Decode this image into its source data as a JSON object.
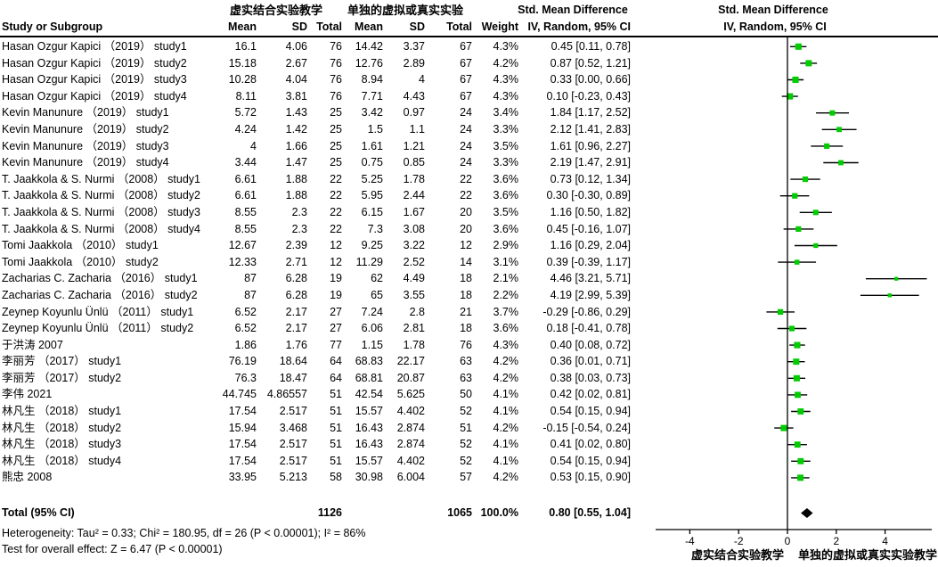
{
  "header": {
    "study_col": "Study or Subgroup",
    "group1": "虚实结合实验教学",
    "group2": "单独的虚拟或真实实验",
    "smd_text_col": "Std. Mean Difference",
    "smd_plot_col": "Std. Mean Difference",
    "mean": "Mean",
    "sd": "SD",
    "total": "Total",
    "weight": "Weight",
    "method_text_col": "IV, Random, 95% CI",
    "method_plot_col": "IV, Random, 95% CI"
  },
  "footer": {
    "heterogeneity": "Heterogeneity: Tau² = 0.33; Chi² = 180.95, df = 26 (P < 0.00001); I² = 86%",
    "overall_effect": "Test for overall effect: Z = 6.47 (P < 0.00001)"
  },
  "colors": {
    "marker_green": "#00cc00",
    "line_black": "#000000"
  },
  "chart_data": {
    "type": "forest",
    "effect_measure": "Std. Mean Difference",
    "model": "IV, Random, 95% CI",
    "axis_ticks": [
      -4,
      -2,
      0,
      2,
      4
    ],
    "axis_label_left": "虚实结合实验教学",
    "axis_label_right": "单独的虚拟或真实实验教学",
    "studies": [
      {
        "name": "Hasan Ozgur Kapici （2019） study1",
        "mean1": "16.1",
        "sd1": "4.06",
        "n1": "76",
        "mean2": "14.42",
        "sd2": "3.37",
        "n2": "67",
        "weight": "4.3%",
        "weight_pct": 4.3,
        "ci_text": "0.45 [0.11, 0.78]",
        "smd": 0.45,
        "lo": 0.11,
        "hi": 0.78
      },
      {
        "name": "Hasan Ozgur Kapici （2019） study2",
        "mean1": "15.18",
        "sd1": "2.67",
        "n1": "76",
        "mean2": "12.76",
        "sd2": "2.89",
        "n2": "67",
        "weight": "4.2%",
        "weight_pct": 4.2,
        "ci_text": "0.87 [0.52, 1.21]",
        "smd": 0.87,
        "lo": 0.52,
        "hi": 1.21
      },
      {
        "name": "Hasan Ozgur Kapici （2019） study3",
        "mean1": "10.28",
        "sd1": "4.04",
        "n1": "76",
        "mean2": "8.94",
        "sd2": "4",
        "n2": "67",
        "weight": "4.3%",
        "weight_pct": 4.3,
        "ci_text": "0.33 [0.00, 0.66]",
        "smd": 0.33,
        "lo": 0.0,
        "hi": 0.66
      },
      {
        "name": "Hasan Ozgur Kapici （2019） study4",
        "mean1": "8.11",
        "sd1": "3.81",
        "n1": "76",
        "mean2": "7.71",
        "sd2": "4.43",
        "n2": "67",
        "weight": "4.3%",
        "weight_pct": 4.3,
        "ci_text": "0.10 [-0.23, 0.43]",
        "smd": 0.1,
        "lo": -0.23,
        "hi": 0.43
      },
      {
        "name": "Kevin Manunure （2019） study1",
        "mean1": "5.72",
        "sd1": "1.43",
        "n1": "25",
        "mean2": "3.42",
        "sd2": "0.97",
        "n2": "24",
        "weight": "3.4%",
        "weight_pct": 3.4,
        "ci_text": "1.84 [1.17, 2.52]",
        "smd": 1.84,
        "lo": 1.17,
        "hi": 2.52
      },
      {
        "name": "Kevin Manunure （2019） study2",
        "mean1": "4.24",
        "sd1": "1.42",
        "n1": "25",
        "mean2": "1.5",
        "sd2": "1.1",
        "n2": "24",
        "weight": "3.3%",
        "weight_pct": 3.3,
        "ci_text": "2.12 [1.41, 2.83]",
        "smd": 2.12,
        "lo": 1.41,
        "hi": 2.83
      },
      {
        "name": "Kevin Manunure （2019） study3",
        "mean1": "4",
        "sd1": "1.66",
        "n1": "25",
        "mean2": "1.61",
        "sd2": "1.21",
        "n2": "24",
        "weight": "3.5%",
        "weight_pct": 3.5,
        "ci_text": "1.61 [0.96, 2.27]",
        "smd": 1.61,
        "lo": 0.96,
        "hi": 2.27
      },
      {
        "name": "Kevin Manunure （2019） study4",
        "mean1": "3.44",
        "sd1": "1.47",
        "n1": "25",
        "mean2": "0.75",
        "sd2": "0.85",
        "n2": "24",
        "weight": "3.3%",
        "weight_pct": 3.3,
        "ci_text": "2.19 [1.47, 2.91]",
        "smd": 2.19,
        "lo": 1.47,
        "hi": 2.91
      },
      {
        "name": "T. Jaakkola & S. Nurmi （2008） study1",
        "mean1": "6.61",
        "sd1": "1.88",
        "n1": "22",
        "mean2": "5.25",
        "sd2": "1.78",
        "n2": "22",
        "weight": "3.6%",
        "weight_pct": 3.6,
        "ci_text": "0.73 [0.12, 1.34]",
        "smd": 0.73,
        "lo": 0.12,
        "hi": 1.34
      },
      {
        "name": "T. Jaakkola & S. Nurmi （2008） study2",
        "mean1": "6.61",
        "sd1": "1.88",
        "n1": "22",
        "mean2": "5.95",
        "sd2": "2.44",
        "n2": "22",
        "weight": "3.6%",
        "weight_pct": 3.6,
        "ci_text": "0.30 [-0.30, 0.89]",
        "smd": 0.3,
        "lo": -0.3,
        "hi": 0.89
      },
      {
        "name": "T. Jaakkola & S. Nurmi （2008） study3",
        "mean1": "8.55",
        "sd1": "2.3",
        "n1": "22",
        "mean2": "6.15",
        "sd2": "1.67",
        "n2": "20",
        "weight": "3.5%",
        "weight_pct": 3.5,
        "ci_text": "1.16 [0.50, 1.82]",
        "smd": 1.16,
        "lo": 0.5,
        "hi": 1.82
      },
      {
        "name": "T. Jaakkola & S. Nurmi （2008） study4",
        "mean1": "8.55",
        "sd1": "2.3",
        "n1": "22",
        "mean2": "7.3",
        "sd2": "3.08",
        "n2": "20",
        "weight": "3.6%",
        "weight_pct": 3.6,
        "ci_text": "0.45 [-0.16, 1.07]",
        "smd": 0.45,
        "lo": -0.16,
        "hi": 1.07
      },
      {
        "name": "Tomi Jaakkola （2010） study1",
        "mean1": "12.67",
        "sd1": "2.39",
        "n1": "12",
        "mean2": "9.25",
        "sd2": "3.22",
        "n2": "12",
        "weight": "2.9%",
        "weight_pct": 2.9,
        "ci_text": "1.16 [0.29, 2.04]",
        "smd": 1.16,
        "lo": 0.29,
        "hi": 2.04
      },
      {
        "name": "Tomi Jaakkola （2010） study2",
        "mean1": "12.33",
        "sd1": "2.71",
        "n1": "12",
        "mean2": "11.29",
        "sd2": "2.52",
        "n2": "14",
        "weight": "3.1%",
        "weight_pct": 3.1,
        "ci_text": "0.39 [-0.39, 1.17]",
        "smd": 0.39,
        "lo": -0.39,
        "hi": 1.17
      },
      {
        "name": "Zacharias C. Zacharia （2016） study1",
        "mean1": "87",
        "sd1": "6.28",
        "n1": "19",
        "mean2": "62",
        "sd2": "4.49",
        "n2": "18",
        "weight": "2.1%",
        "weight_pct": 2.1,
        "ci_text": "4.46 [3.21, 5.71]",
        "smd": 4.46,
        "lo": 3.21,
        "hi": 5.71
      },
      {
        "name": "Zacharias C. Zacharia （2016） study2",
        "mean1": "87",
        "sd1": "6.28",
        "n1": "19",
        "mean2": "65",
        "sd2": "3.55",
        "n2": "18",
        "weight": "2.2%",
        "weight_pct": 2.2,
        "ci_text": "4.19 [2.99, 5.39]",
        "smd": 4.19,
        "lo": 2.99,
        "hi": 5.39
      },
      {
        "name": "Zeynep Koyunlu Ünlü （2011） study1",
        "mean1": "6.52",
        "sd1": "2.17",
        "n1": "27",
        "mean2": "7.24",
        "sd2": "2.8",
        "n2": "21",
        "weight": "3.7%",
        "weight_pct": 3.7,
        "ci_text": "-0.29 [-0.86, 0.29]",
        "smd": -0.29,
        "lo": -0.86,
        "hi": 0.29
      },
      {
        "name": "Zeynep Koyunlu Ünlü （2011） study2",
        "mean1": "6.52",
        "sd1": "2.17",
        "n1": "27",
        "mean2": "6.06",
        "sd2": "2.81",
        "n2": "18",
        "weight": "3.6%",
        "weight_pct": 3.6,
        "ci_text": "0.18 [-0.41, 0.78]",
        "smd": 0.18,
        "lo": -0.41,
        "hi": 0.78
      },
      {
        "name": "于洪涛 2007",
        "mean1": "1.86",
        "sd1": "1.76",
        "n1": "77",
        "mean2": "1.15",
        "sd2": "1.78",
        "n2": "76",
        "weight": "4.3%",
        "weight_pct": 4.3,
        "ci_text": "0.40 [0.08, 0.72]",
        "smd": 0.4,
        "lo": 0.08,
        "hi": 0.72
      },
      {
        "name": "李丽芳 （2017） study1",
        "mean1": "76.19",
        "sd1": "18.64",
        "n1": "64",
        "mean2": "68.83",
        "sd2": "22.17",
        "n2": "63",
        "weight": "4.2%",
        "weight_pct": 4.2,
        "ci_text": "0.36 [0.01, 0.71]",
        "smd": 0.36,
        "lo": 0.01,
        "hi": 0.71
      },
      {
        "name": "李丽芳 （2017） study2",
        "mean1": "76.3",
        "sd1": "18.47",
        "n1": "64",
        "mean2": "68.81",
        "sd2": "20.87",
        "n2": "63",
        "weight": "4.2%",
        "weight_pct": 4.2,
        "ci_text": "0.38 [0.03, 0.73]",
        "smd": 0.38,
        "lo": 0.03,
        "hi": 0.73
      },
      {
        "name": "李伟 2021",
        "mean1": "44.745",
        "sd1": "4.86557",
        "n1": "51",
        "mean2": "42.54",
        "sd2": "5.625",
        "n2": "50",
        "weight": "4.1%",
        "weight_pct": 4.1,
        "ci_text": "0.42 [0.02, 0.81]",
        "smd": 0.42,
        "lo": 0.02,
        "hi": 0.81
      },
      {
        "name": "林凡生 （2018） study1",
        "mean1": "17.54",
        "sd1": "2.517",
        "n1": "51",
        "mean2": "15.57",
        "sd2": "4.402",
        "n2": "52",
        "weight": "4.1%",
        "weight_pct": 4.1,
        "ci_text": "0.54 [0.15, 0.94]",
        "smd": 0.54,
        "lo": 0.15,
        "hi": 0.94
      },
      {
        "name": "林凡生 （2018） study2",
        "mean1": "15.94",
        "sd1": "3.468",
        "n1": "51",
        "mean2": "16.43",
        "sd2": "2.874",
        "n2": "51",
        "weight": "4.2%",
        "weight_pct": 4.2,
        "ci_text": "-0.15 [-0.54, 0.24]",
        "smd": -0.15,
        "lo": -0.54,
        "hi": 0.24
      },
      {
        "name": "林凡生 （2018） study3",
        "mean1": "17.54",
        "sd1": "2.517",
        "n1": "51",
        "mean2": "16.43",
        "sd2": "2.874",
        "n2": "52",
        "weight": "4.1%",
        "weight_pct": 4.1,
        "ci_text": "0.41 [0.02, 0.80]",
        "smd": 0.41,
        "lo": 0.02,
        "hi": 0.8
      },
      {
        "name": "林凡生 （2018） study4",
        "mean1": "17.54",
        "sd1": "2.517",
        "n1": "51",
        "mean2": "15.57",
        "sd2": "4.402",
        "n2": "52",
        "weight": "4.1%",
        "weight_pct": 4.1,
        "ci_text": "0.54 [0.15, 0.94]",
        "smd": 0.54,
        "lo": 0.15,
        "hi": 0.94
      },
      {
        "name": "熊忠 2008",
        "mean1": "33.95",
        "sd1": "5.213",
        "n1": "58",
        "mean2": "30.98",
        "sd2": "6.004",
        "n2": "57",
        "weight": "4.2%",
        "weight_pct": 4.2,
        "ci_text": "0.53 [0.15, 0.90]",
        "smd": 0.53,
        "lo": 0.15,
        "hi": 0.9
      }
    ],
    "total": {
      "label": "Total (95% CI)",
      "n1": "1126",
      "n2": "1065",
      "weight": "100.0%",
      "ci_text": "0.80 [0.55, 1.04]",
      "smd": 0.8,
      "lo": 0.55,
      "hi": 1.04
    }
  }
}
